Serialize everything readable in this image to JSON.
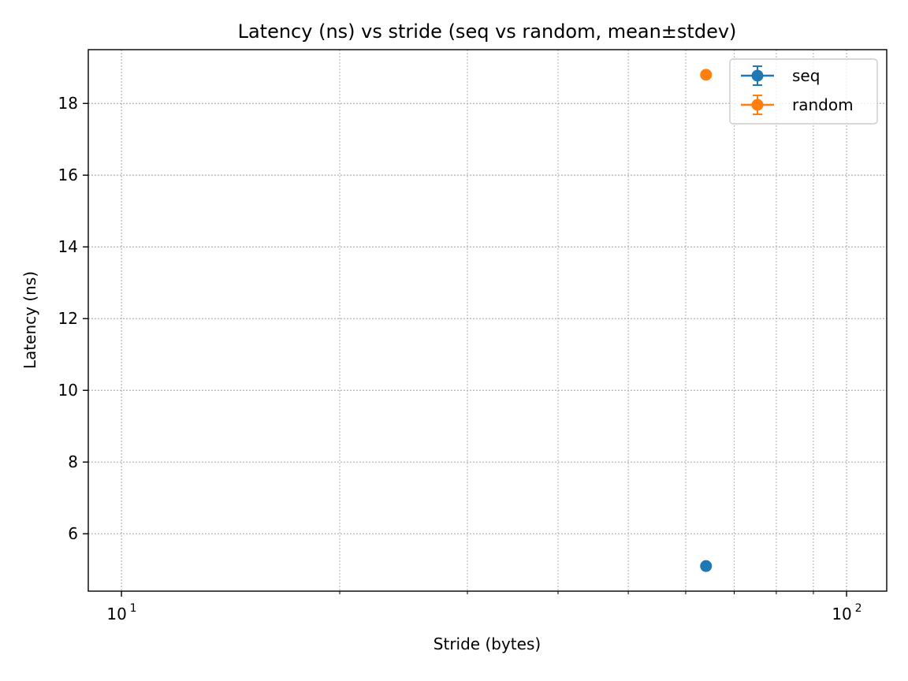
{
  "chart_data": {
    "type": "scatter",
    "title": "Latency (ns) vs stride (seq vs random, mean±stdev)",
    "xlabel": "Stride (bytes)",
    "ylabel": "Latency (ns)",
    "xscale": "log",
    "xlim": [
      9.0,
      113.6
    ],
    "ylim": [
      4.4,
      19.5
    ],
    "x_ticks": [
      {
        "value": 10,
        "base": "10",
        "exp": "1"
      },
      {
        "value": 100,
        "base": "10",
        "exp": "2"
      }
    ],
    "y_ticks": [
      {
        "value": 6,
        "label": "6"
      },
      {
        "value": 8,
        "label": "8"
      },
      {
        "value": 10,
        "label": "10"
      },
      {
        "value": 12,
        "label": "12"
      },
      {
        "value": 14,
        "label": "14"
      },
      {
        "value": 16,
        "label": "16"
      },
      {
        "value": 18,
        "label": "18"
      }
    ],
    "grid": true,
    "legend_position": "top-right",
    "series": [
      {
        "name": "seq",
        "color": "#1f77b4",
        "points": [
          {
            "x": 64,
            "y": 5.1,
            "err": 0.0
          }
        ]
      },
      {
        "name": "random",
        "color": "#ff7f0e",
        "points": [
          {
            "x": 64,
            "y": 18.8,
            "err": 0.0
          }
        ]
      }
    ]
  }
}
